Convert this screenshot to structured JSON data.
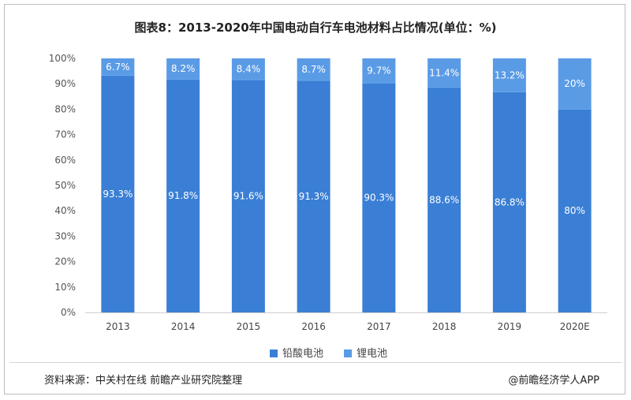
{
  "title": "图表8：2013-2020年中国电动自行车电池材料占比情况(单位：%)",
  "footer": {
    "source": "资料来源：中关村在线 前瞻产业研究院整理",
    "credit": "@前瞻经济学人APP"
  },
  "chart_data": {
    "type": "bar",
    "stacked": true,
    "categories": [
      "2013",
      "2014",
      "2015",
      "2016",
      "2017",
      "2018",
      "2019",
      "2020E"
    ],
    "series": [
      {
        "name": "铅酸电池",
        "values": [
          93.3,
          91.8,
          91.6,
          91.3,
          90.3,
          88.6,
          86.8,
          80
        ],
        "labels": [
          "93.3%",
          "91.8%",
          "91.6%",
          "91.3%",
          "90.3%",
          "88.6%",
          "86.8%",
          "80%"
        ],
        "color": "#3a7fd5"
      },
      {
        "name": "锂电池",
        "values": [
          6.7,
          8.2,
          8.4,
          8.7,
          9.7,
          11.4,
          13.2,
          20
        ],
        "labels": [
          "6.7%",
          "8.2%",
          "8.4%",
          "8.7%",
          "9.7%",
          "11.4%",
          "13.2%",
          "20%"
        ],
        "color": "#5a9be6"
      }
    ],
    "yticks": [
      "0%",
      "10%",
      "20%",
      "30%",
      "40%",
      "50%",
      "60%",
      "70%",
      "80%",
      "90%",
      "100%"
    ],
    "ylim": [
      0,
      100
    ],
    "grid": false,
    "legend": "bottom"
  }
}
